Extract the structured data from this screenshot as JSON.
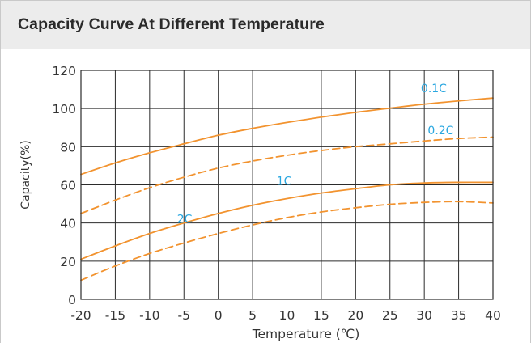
{
  "header": {
    "title": "Capacity Curve At Different Temperature"
  },
  "chart_data": {
    "type": "line",
    "title": "Capacity Curve At Different Temperature",
    "xlabel": "Temperature (℃)",
    "ylabel": "Capacity(%)",
    "xlim": [
      -20,
      40
    ],
    "ylim": [
      0,
      120
    ],
    "x_ticks": [
      -20,
      -15,
      -10,
      -5,
      0,
      5,
      10,
      15,
      20,
      25,
      30,
      35,
      40
    ],
    "y_ticks": [
      0,
      20,
      40,
      60,
      80,
      100,
      120
    ],
    "grid": true,
    "series": [
      {
        "name": "0.1C",
        "color": "#f2932f",
        "dash": "solid",
        "x": [
          -20,
          -15,
          -10,
          -5,
          0,
          5,
          10,
          15,
          20,
          25,
          30,
          35,
          40
        ],
        "y": [
          65.5,
          71.5,
          76.8,
          81.5,
          86,
          89.6,
          92.7,
          95.5,
          98,
          100.2,
          102.3,
          104,
          105.5
        ]
      },
      {
        "name": "0.2C",
        "color": "#f2932f",
        "dash": "dashed",
        "x": [
          -20,
          -15,
          -10,
          -5,
          0,
          5,
          10,
          15,
          20,
          25,
          30,
          35,
          40
        ],
        "y": [
          45,
          52,
          58.5,
          64,
          68.8,
          72.5,
          75.5,
          78,
          80,
          81.5,
          83,
          84.3,
          85
        ]
      },
      {
        "name": "1C",
        "color": "#f2932f",
        "dash": "solid",
        "x": [
          -20,
          -15,
          -10,
          -5,
          0,
          5,
          10,
          15,
          20,
          25,
          30,
          35,
          40
        ],
        "y": [
          21,
          28,
          34.5,
          40,
          45,
          49.3,
          52.8,
          55.7,
          58,
          60,
          61,
          61.3,
          61.3
        ]
      },
      {
        "name": "2C",
        "color": "#f2932f",
        "dash": "dashed",
        "x": [
          -20,
          -15,
          -10,
          -5,
          0,
          5,
          10,
          15,
          20,
          25,
          30,
          35,
          40
        ],
        "y": [
          10,
          17.5,
          24,
          29.5,
          34.5,
          39,
          42.8,
          45.8,
          48,
          49.8,
          50.8,
          51.2,
          50.5
        ]
      }
    ],
    "annotations": [
      {
        "text": "0.1C",
        "x": 29.5,
        "y": 108.5,
        "color": "#2aa7e0"
      },
      {
        "text": "0.2C",
        "x": 30.5,
        "y": 86.5,
        "color": "#2aa7e0"
      },
      {
        "text": "1C",
        "x": 8.5,
        "y": 60,
        "color": "#2aa7e0"
      },
      {
        "text": "2C",
        "x": -6,
        "y": 40,
        "color": "#2aa7e0"
      }
    ]
  }
}
